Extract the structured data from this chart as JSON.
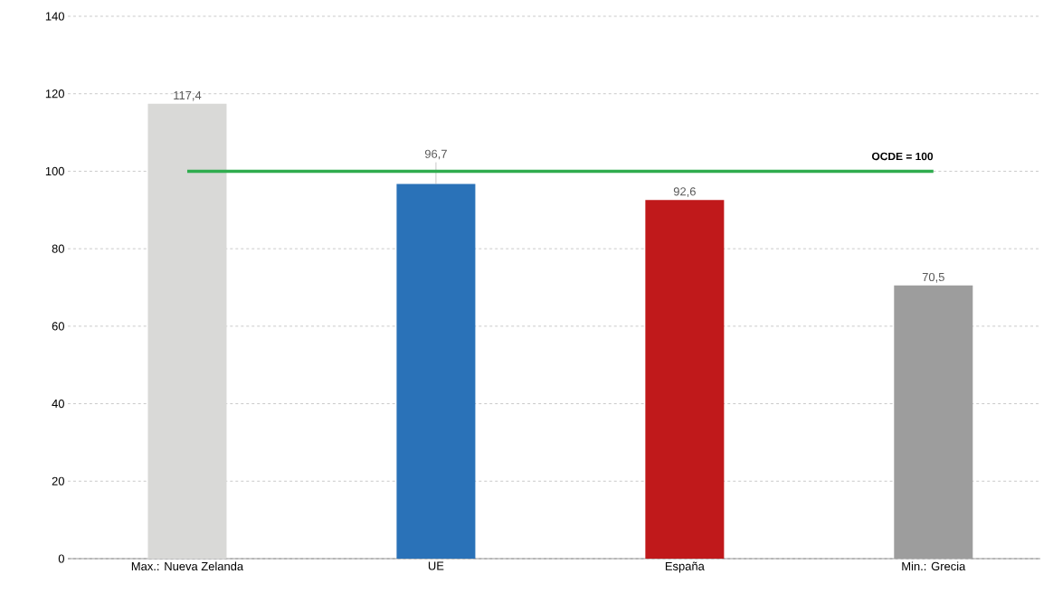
{
  "chart_data": {
    "type": "bar",
    "categories": [
      "Max.: Nueva Zelanda",
      "UE",
      "España",
      "Min.: Grecia"
    ],
    "values": [
      117.4,
      96.7,
      92.6,
      70.5
    ],
    "colors": [
      "#d9d9d7",
      "#2a72b8",
      "#c0191b",
      "#9d9d9d"
    ],
    "value_labels": [
      "117,4",
      "96,7",
      "92,6",
      "70,5"
    ],
    "ylim": [
      0,
      140
    ],
    "yticks": [
      0,
      20,
      40,
      60,
      80,
      100,
      120,
      140
    ],
    "grid": "y",
    "ref_lines": [
      {
        "axis": "y",
        "value": 100,
        "label": "OCDE = 100",
        "color": "#2fac4e"
      }
    ]
  }
}
